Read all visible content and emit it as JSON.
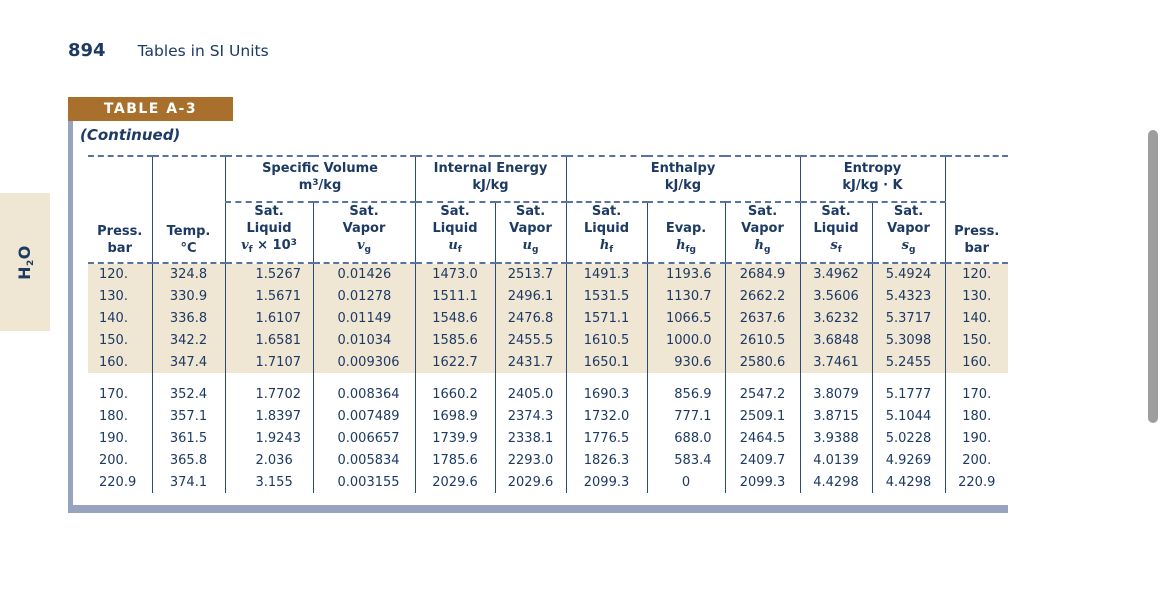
{
  "page": {
    "number": "894",
    "header_title": "Tables in SI Units",
    "side_tab": "H_2_O"
  },
  "table": {
    "label": "TABLE A-3",
    "continued": "(Continued)",
    "header": {
      "groups": [
        {
          "title": "Specific Volume",
          "units": "m^3^/kg",
          "span": 2
        },
        {
          "title": "Internal Energy",
          "units": "kJ/kg",
          "span": 2
        },
        {
          "title": "Enthalpy",
          "units": "kJ/kg",
          "span": 3
        },
        {
          "title": "Entropy",
          "units": "kJ/kg · K",
          "span": 2
        }
      ],
      "columns": [
        {
          "lines": [
            "Press.",
            "bar"
          ]
        },
        {
          "lines": [
            "Temp.",
            "°C"
          ]
        },
        {
          "lines": [
            "Sat.",
            "Liquid",
            "*v*_f_ × 10^3^"
          ]
        },
        {
          "lines": [
            "Sat.",
            "Vapor",
            "*v*_g_"
          ]
        },
        {
          "lines": [
            "Sat.",
            "Liquid",
            "*u*_f_"
          ]
        },
        {
          "lines": [
            "Sat.",
            "Vapor",
            "*u*_g_"
          ]
        },
        {
          "lines": [
            "Sat.",
            "Liquid",
            "*h*_f_"
          ]
        },
        {
          "lines": [
            "Evap.",
            "*h*_fg_"
          ]
        },
        {
          "lines": [
            "Sat.",
            "Vapor",
            "*h*_g_"
          ]
        },
        {
          "lines": [
            "Sat.",
            "Liquid",
            "*s*_f_"
          ]
        },
        {
          "lines": [
            "Sat.",
            "Vapor",
            "*s*_g_"
          ]
        },
        {
          "lines": [
            "Press.",
            "bar"
          ]
        }
      ]
    }
  },
  "chart_data": {
    "type": "table",
    "columns": [
      "Press. bar",
      "Temp. °C",
      "Sat. Liquid vf × 10^3 (m^3/kg)",
      "Sat. Vapor vg (m^3/kg)",
      "Sat. Liquid uf (kJ/kg)",
      "Sat. Vapor ug (kJ/kg)",
      "Sat. Liquid hf (kJ/kg)",
      "Evap. hfg (kJ/kg)",
      "Sat. Vapor hg (kJ/kg)",
      "Sat. Liquid sf (kJ/kg·K)",
      "Sat. Vapor sg (kJ/kg·K)",
      "Press. bar"
    ],
    "row_groups": [
      [
        [
          "120.",
          "324.8",
          "1.5267",
          "0.01426",
          "1473.0",
          "2513.7",
          "1491.3",
          "1193.6",
          "2684.9",
          "3.4962",
          "5.4924",
          "120."
        ],
        [
          "130.",
          "330.9",
          "1.5671",
          "0.01278",
          "1511.1",
          "2496.1",
          "1531.5",
          "1130.7",
          "2662.2",
          "3.5606",
          "5.4323",
          "130."
        ],
        [
          "140.",
          "336.8",
          "1.6107",
          "0.01149",
          "1548.6",
          "2476.8",
          "1571.1",
          "1066.5",
          "2637.6",
          "3.6232",
          "5.3717",
          "140."
        ],
        [
          "150.",
          "342.2",
          "1.6581",
          "0.01034",
          "1585.6",
          "2455.5",
          "1610.5",
          "1000.0",
          "2610.5",
          "3.6848",
          "5.3098",
          "150."
        ],
        [
          "160.",
          "347.4",
          "1.7107",
          "0.009306",
          "1622.7",
          "2431.7",
          "1650.1",
          "930.6",
          "2580.6",
          "3.7461",
          "5.2455",
          "160."
        ]
      ],
      [
        [
          "170.",
          "352.4",
          "1.7702",
          "0.008364",
          "1660.2",
          "2405.0",
          "1690.3",
          "856.9",
          "2547.2",
          "3.8079",
          "5.1777",
          "170."
        ],
        [
          "180.",
          "357.1",
          "1.8397",
          "0.007489",
          "1698.9",
          "2374.3",
          "1732.0",
          "777.1",
          "2509.1",
          "3.8715",
          "5.1044",
          "180."
        ],
        [
          "190.",
          "361.5",
          "1.9243",
          "0.006657",
          "1739.9",
          "2338.1",
          "1776.5",
          "688.0",
          "2464.5",
          "3.9388",
          "5.0228",
          "190."
        ],
        [
          "200.",
          "365.8",
          "2.036",
          "0.005834",
          "1785.6",
          "2293.0",
          "1826.3",
          "583.4",
          "2409.7",
          "4.0139",
          "4.9269",
          "200."
        ],
        [
          "220.9",
          "374.1",
          "3.155",
          "0.003155",
          "2029.6",
          "2029.6",
          "2099.3",
          "0",
          "2099.3",
          "4.4298",
          "4.4298",
          "220.9"
        ]
      ]
    ]
  },
  "colors": {
    "navy_text": "#1d3a63",
    "brown_header_text": "#b0742c",
    "label_bar_bg": "#a8702c",
    "row_band_bg": "#f0e6d4",
    "frame": "#97a3bf",
    "dashed_rule": "#5673a3",
    "scrollbar_thumb": "#9e9e9e"
  }
}
